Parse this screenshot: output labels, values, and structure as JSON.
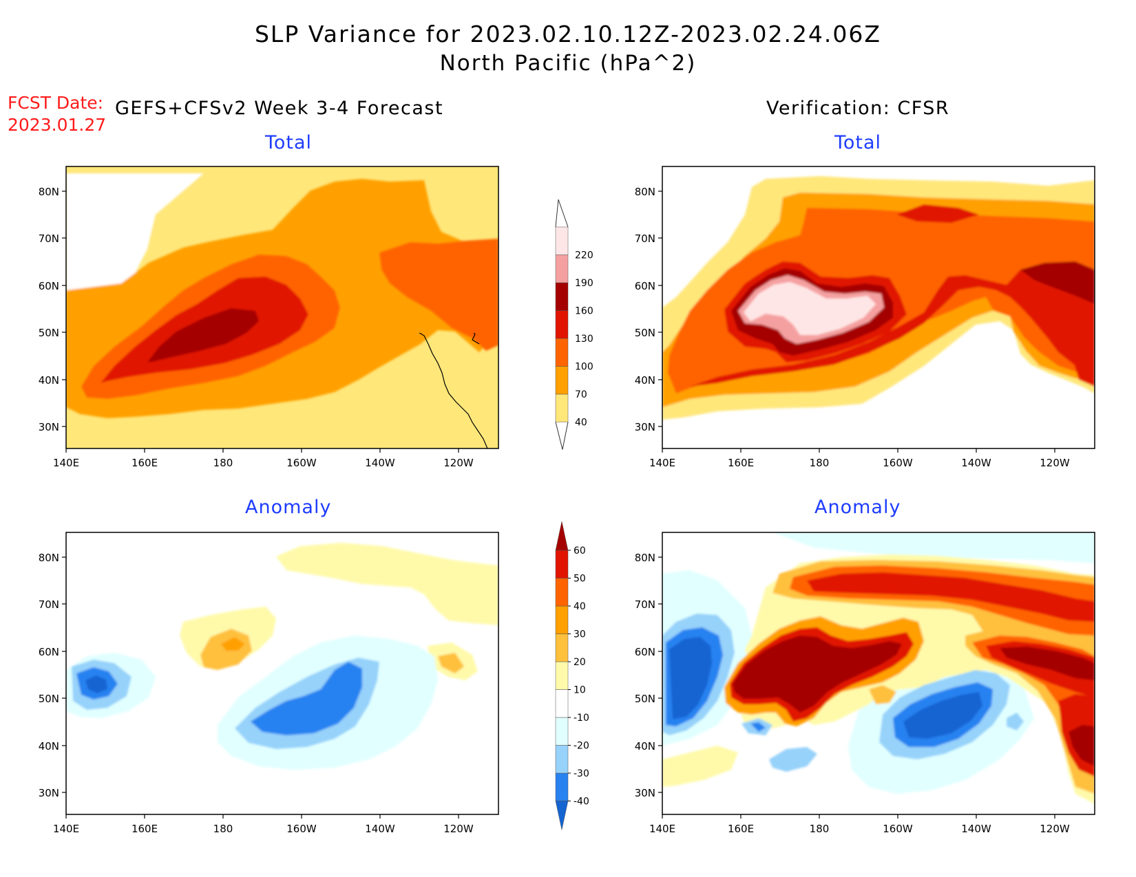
{
  "header": {
    "title": "SLP Variance for 2023.02.10.12Z-2023.02.24.06Z",
    "subtitle": "North Pacific (hPa^2)"
  },
  "forecast_date": {
    "label": "FCST Date:",
    "value": "2023.01.27"
  },
  "columns": {
    "left": "GEFS+CFSv2 Week 3-4 Forecast",
    "right": "Verification: CFSR"
  },
  "panels": {
    "total_label": "Total",
    "anomaly_label": "Anomaly"
  },
  "axes": {
    "lon_ticks": [
      "140E",
      "160E",
      "180",
      "160W",
      "140W",
      "120W"
    ],
    "lat_ticks": [
      "80N",
      "70N",
      "60N",
      "50N",
      "40N",
      "30N"
    ]
  },
  "colorbars": {
    "total": {
      "levels": [
        "40",
        "70",
        "100",
        "130",
        "160",
        "190",
        "220"
      ],
      "colors": [
        "#ffe77a",
        "#ffa000",
        "#ff6400",
        "#e11400",
        "#a50000",
        "#f5a0a0",
        "#ffe6e6"
      ]
    },
    "anomaly": {
      "levels": [
        "-40",
        "-30",
        "-20",
        "-10",
        "10",
        "20",
        "30",
        "40",
        "50",
        "60"
      ],
      "colors": [
        "#1464d2",
        "#2882f0",
        "#96d2fa",
        "#e1ffff",
        "#ffffff",
        "#fffaaa",
        "#ffc03c",
        "#ffa000",
        "#ff6400",
        "#e11400",
        "#a50000"
      ]
    }
  }
}
